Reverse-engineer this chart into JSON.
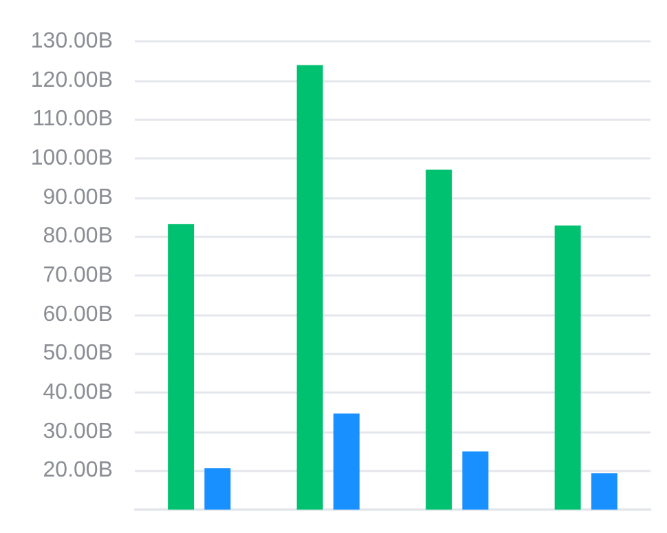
{
  "chart_data": {
    "type": "bar",
    "categories": [
      null,
      null,
      null,
      null
    ],
    "series": [
      {
        "color": "#00c170",
        "values": [
          83.2,
          123.9,
          97.1,
          82.8
        ]
      },
      {
        "color": "#1890ff",
        "values": [
          20.6,
          34.6,
          24.9,
          19.3
        ]
      }
    ],
    "ylim": [
      10,
      130
    ],
    "yticks": [
      {
        "value": 10,
        "label": null
      },
      {
        "value": 20,
        "label": "20.00B"
      },
      {
        "value": 30,
        "label": "30.00B"
      },
      {
        "value": 40,
        "label": "40.00B"
      },
      {
        "value": 50,
        "label": "50.00B"
      },
      {
        "value": 60,
        "label": "60.00B"
      },
      {
        "value": 70,
        "label": "70.00B"
      },
      {
        "value": 80,
        "label": "80.00B"
      },
      {
        "value": 90,
        "label": "90.00B"
      },
      {
        "value": 100,
        "label": "100.00B"
      },
      {
        "value": 110,
        "label": "110.00B"
      },
      {
        "value": 120,
        "label": "120.00B"
      },
      {
        "value": 130,
        "label": "130.00B"
      }
    ],
    "grid": "y"
  }
}
